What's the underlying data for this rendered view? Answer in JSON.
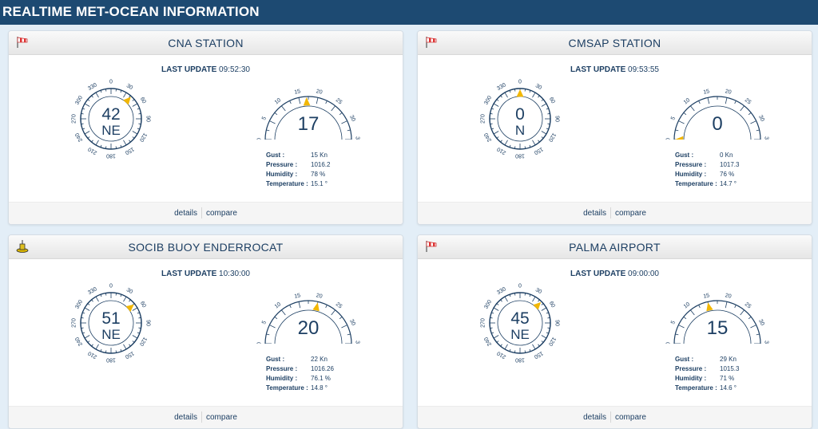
{
  "page_title": "REALTIME MET-OCEAN INFORMATION",
  "labels": {
    "last_update": "LAST UPDATE",
    "gust": "Gust :",
    "pressure": "Pressure :",
    "humidity": "Humidity :",
    "temperature": "Temperature :",
    "details": "details",
    "compare": "compare"
  },
  "compass_ticks": [
    "0",
    "30",
    "60",
    "90",
    "120",
    "150",
    "180",
    "210",
    "240",
    "270",
    "300",
    "330"
  ],
  "speed_ticks": [
    "0",
    "5",
    "10",
    "15",
    "20",
    "25",
    "30",
    "35"
  ],
  "colors": {
    "header_bg": "#1d4a72",
    "text": "#1d3f63",
    "pointer": "#f2b705"
  },
  "stations": [
    {
      "title": "CNA STATION",
      "icon": "windsock-icon",
      "last_update": "09:52:30",
      "direction_value": "42",
      "direction_label": "NE",
      "direction_deg": 42,
      "speed_value": "17",
      "speed_kn": 17,
      "gust": "15 Kn",
      "pressure": "1016.2",
      "humidity": "78 %",
      "temperature": "15.1 °"
    },
    {
      "title": "CMSAP STATION",
      "icon": "windsock-icon",
      "last_update": "09:53:55",
      "direction_value": "0",
      "direction_label": "N",
      "direction_deg": 0,
      "speed_value": "0",
      "speed_kn": 0,
      "gust": "0 Kn",
      "pressure": "1017.3",
      "humidity": "76 %",
      "temperature": "14.7 °"
    },
    {
      "title": "SOCIB BUOY ENDERROCAT",
      "icon": "buoy-icon",
      "last_update": "10:30:00",
      "direction_value": "51",
      "direction_label": "NE",
      "direction_deg": 51,
      "speed_value": "20",
      "speed_kn": 20,
      "gust": "22 Kn",
      "pressure": "1016.26",
      "humidity": "76.1 %",
      "temperature": "14.8 °"
    },
    {
      "title": "PALMA AIRPORT",
      "icon": "windsock-icon",
      "last_update": "09:00:00",
      "direction_value": "45",
      "direction_label": "NE",
      "direction_deg": 45,
      "speed_value": "15",
      "speed_kn": 15,
      "gust": "29 Kn",
      "pressure": "1015.3",
      "humidity": "71 %",
      "temperature": "14.6 °"
    }
  ]
}
